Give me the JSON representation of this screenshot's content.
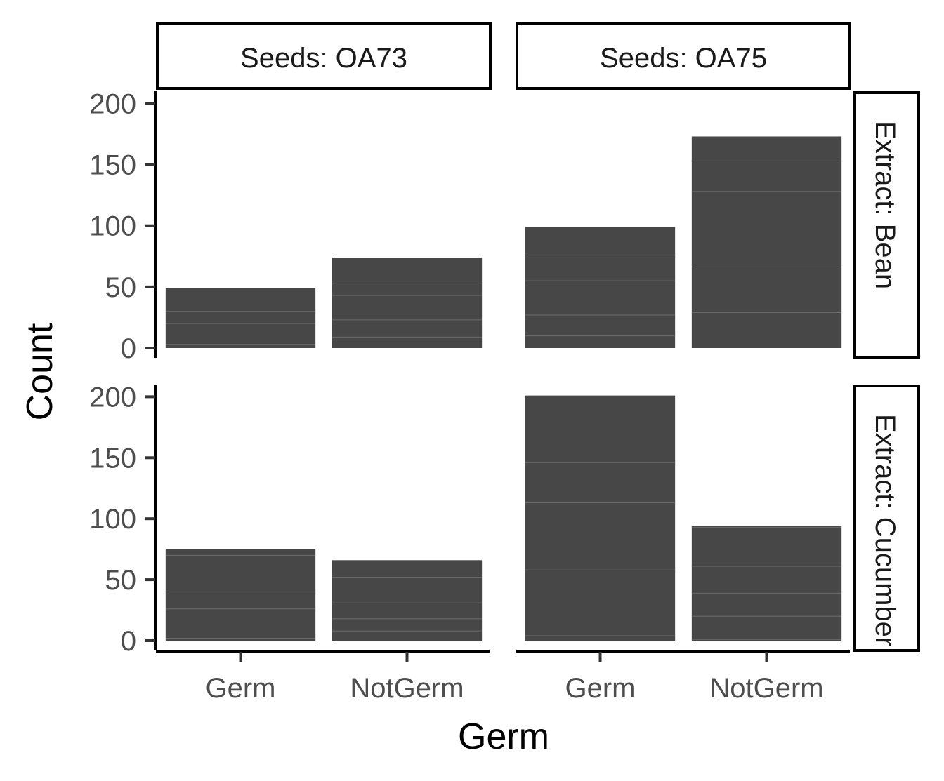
{
  "chart_data": {
    "type": "bar",
    "facet_columns": [
      "Seeds: OA73",
      "Seeds: OA75"
    ],
    "facet_rows": [
      "Extract: Bean",
      "Extract: Cucumber"
    ],
    "categories": [
      "Germ",
      "NotGerm"
    ],
    "panels": [
      {
        "column": "Seeds: OA73",
        "row": "Extract: Bean",
        "values": [
          49,
          74
        ],
        "segments": [
          [
            3,
            17,
            10,
            19
          ],
          [
            9,
            14,
            20,
            10,
            21
          ]
        ]
      },
      {
        "column": "Seeds: OA75",
        "row": "Extract: Bean",
        "values": [
          99,
          173
        ],
        "segments": [
          [
            10,
            17,
            28,
            21,
            23
          ],
          [
            29,
            39,
            60,
            25,
            20
          ]
        ]
      },
      {
        "column": "Seeds: OA73",
        "row": "Extract: Cucumber",
        "values": [
          75,
          66
        ],
        "segments": [
          [
            2,
            24,
            14,
            30,
            5
          ],
          [
            8,
            10,
            13,
            21,
            14
          ]
        ]
      },
      {
        "column": "Seeds: OA75",
        "row": "Extract: Cucumber",
        "values": [
          201,
          94
        ],
        "segments": [
          [
            4,
            54,
            55,
            33,
            55
          ],
          [
            1,
            19,
            19,
            22,
            32,
            1
          ]
        ]
      }
    ],
    "xlabel": "Germ",
    "ylabel": "Count",
    "ylim": [
      0,
      210
    ],
    "yticks": [
      0,
      50,
      100,
      150,
      200
    ],
    "legend": "none",
    "grid": false,
    "colors": {
      "bar": "#474747",
      "segment_line": "#6b6b6b"
    }
  }
}
